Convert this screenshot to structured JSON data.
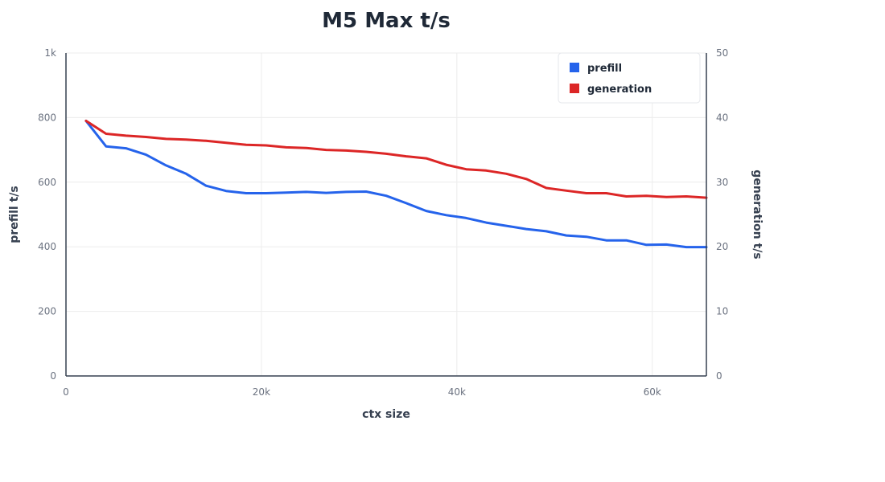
{
  "chart_data": {
    "type": "line",
    "title": "M5 Max t/s",
    "xlabel": "ctx size",
    "ylabel_left": "prefill t/s",
    "ylabel_right": "generation t/s",
    "xlim": [
      0,
      65536
    ],
    "ylim_left": [
      0,
      1000
    ],
    "ylim_right": [
      0,
      50
    ],
    "x_ticks": [
      {
        "value": 0,
        "label": "0"
      },
      {
        "value": 20000,
        "label": "20k"
      },
      {
        "value": 40000,
        "label": "40k"
      },
      {
        "value": 60000,
        "label": "60k"
      }
    ],
    "y_left_ticks": [
      {
        "value": 0,
        "label": "0"
      },
      {
        "value": 200,
        "label": "200"
      },
      {
        "value": 400,
        "label": "400"
      },
      {
        "value": 600,
        "label": "600"
      },
      {
        "value": 800,
        "label": "800"
      },
      {
        "value": 1000,
        "label": "1k"
      }
    ],
    "y_right_ticks": [
      {
        "value": 0,
        "label": "0"
      },
      {
        "value": 10,
        "label": "10"
      },
      {
        "value": 20,
        "label": "20"
      },
      {
        "value": 30,
        "label": "30"
      },
      {
        "value": 40,
        "label": "40"
      },
      {
        "value": 50,
        "label": "50"
      }
    ],
    "grid": true,
    "legend_position": "top-right",
    "x": [
      2048,
      4096,
      6144,
      8192,
      10240,
      12288,
      14336,
      16384,
      18432,
      20480,
      22528,
      24576,
      26624,
      28672,
      30720,
      32768,
      34816,
      36864,
      38912,
      40960,
      43008,
      45056,
      47104,
      49152,
      51200,
      53248,
      55296,
      57344,
      59392,
      61440,
      63488,
      65536
    ],
    "series": [
      {
        "name": "prefill",
        "axis": "left",
        "color": "#2563eb",
        "values": [
          790,
          711,
          705,
          685,
          652,
          626,
          589,
          573,
          566,
          566,
          568,
          570,
          567,
          570,
          571,
          558,
          535,
          511,
          498,
          489,
          475,
          465,
          455,
          448,
          435,
          431,
          420,
          420,
          406,
          407,
          399,
          399
        ]
      },
      {
        "name": "generation",
        "axis": "right",
        "color": "#dc2626",
        "values": [
          39.5,
          37.5,
          37.2,
          37.0,
          36.7,
          36.6,
          36.4,
          36.1,
          35.8,
          35.7,
          35.4,
          35.3,
          35.0,
          34.9,
          34.7,
          34.4,
          34.0,
          33.7,
          32.7,
          32.0,
          31.8,
          31.3,
          30.5,
          29.1,
          28.7,
          28.3,
          28.3,
          27.8,
          27.9,
          27.7,
          27.8,
          27.6
        ]
      }
    ]
  }
}
